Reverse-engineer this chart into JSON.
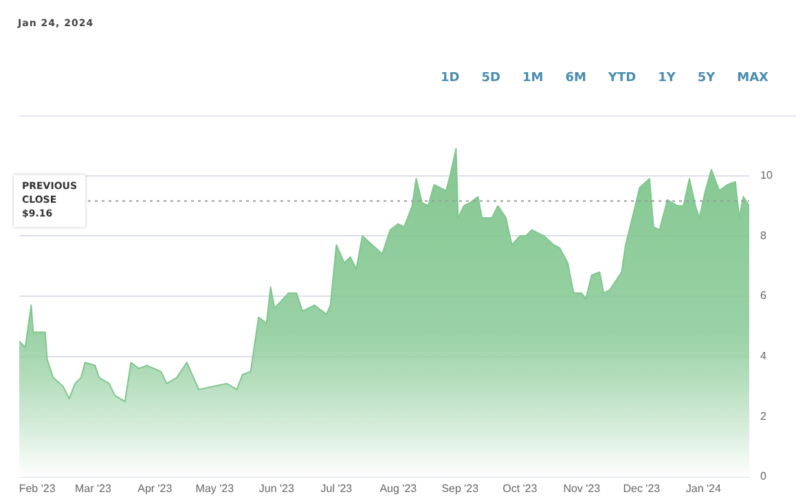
{
  "chart_data": {
    "type": "area",
    "title": "Jan 24, 2024",
    "annotations": [
      "1D",
      "5D",
      "1M",
      "6M",
      "YTD",
      "1Y",
      "5Y",
      "MAX"
    ],
    "x": [
      "2023-01-23",
      "2023-01-26",
      "2023-01-29",
      "2023-01-30",
      "2023-02-05",
      "2023-02-06",
      "2023-02-09",
      "2023-02-14",
      "2023-02-17",
      "2023-02-20",
      "2023-02-23",
      "2023-02-25",
      "2023-03-02",
      "2023-03-04",
      "2023-03-09",
      "2023-03-12",
      "2023-03-17",
      "2023-03-20",
      "2023-03-24",
      "2023-03-28",
      "2023-04-04",
      "2023-04-07",
      "2023-04-12",
      "2023-04-17",
      "2023-04-23",
      "2023-04-30",
      "2023-05-07",
      "2023-05-12",
      "2023-05-15",
      "2023-05-19",
      "2023-05-23",
      "2023-05-27",
      "2023-05-29",
      "2023-05-31",
      "2023-06-07",
      "2023-06-11",
      "2023-06-14",
      "2023-06-20",
      "2023-06-26",
      "2023-06-28",
      "2023-07-01",
      "2023-07-05",
      "2023-07-08",
      "2023-07-11",
      "2023-07-14",
      "2023-07-19",
      "2023-07-24",
      "2023-07-28",
      "2023-08-01",
      "2023-08-04",
      "2023-08-08",
      "2023-08-10",
      "2023-08-13",
      "2023-08-16",
      "2023-08-19",
      "2023-08-22",
      "2023-08-25",
      "2023-08-27",
      "2023-08-30",
      "2023-08-31",
      "2023-09-03",
      "2023-09-06",
      "2023-09-10",
      "2023-09-12",
      "2023-09-17",
      "2023-09-20",
      "2023-09-24",
      "2023-09-27",
      "2023-10-01",
      "2023-10-04",
      "2023-10-07",
      "2023-10-13",
      "2023-10-18",
      "2023-10-21",
      "2023-10-25",
      "2023-10-28",
      "2023-11-01",
      "2023-11-03",
      "2023-11-06",
      "2023-11-10",
      "2023-11-12",
      "2023-11-15",
      "2023-11-18",
      "2023-11-21",
      "2023-11-23",
      "2023-11-26",
      "2023-11-30",
      "2023-12-05",
      "2023-12-07",
      "2023-12-10",
      "2023-12-14",
      "2023-12-19",
      "2023-12-22",
      "2023-12-25",
      "2023-12-28",
      "2023-12-30",
      "2024-01-02",
      "2024-01-05",
      "2024-01-09",
      "2024-01-13",
      "2024-01-17",
      "2024-01-19",
      "2024-01-21",
      "2024-01-24"
    ],
    "series": [
      {
        "color": "#80c68e",
        "values": [
          4.5,
          4.3,
          5.7,
          4.8,
          4.8,
          3.9,
          3.3,
          3.0,
          2.6,
          3.1,
          3.3,
          3.8,
          3.7,
          3.3,
          3.1,
          2.7,
          2.5,
          3.8,
          3.6,
          3.7,
          3.5,
          3.1,
          3.3,
          3.8,
          2.9,
          3.0,
          3.1,
          2.9,
          3.4,
          3.5,
          5.3,
          5.1,
          6.3,
          5.6,
          6.1,
          6.1,
          5.5,
          5.7,
          5.4,
          5.7,
          7.7,
          7.1,
          7.3,
          6.9,
          8.0,
          7.7,
          7.4,
          8.2,
          8.4,
          8.3,
          9.0,
          9.9,
          9.1,
          9.0,
          9.7,
          9.6,
          9.5,
          10.0,
          10.9,
          8.6,
          9.0,
          9.1,
          9.3,
          8.6,
          8.6,
          9.0,
          8.6,
          7.7,
          8.0,
          8.0,
          8.2,
          8.0,
          7.7,
          7.6,
          7.1,
          6.1,
          6.1,
          5.9,
          6.7,
          6.8,
          6.1,
          6.2,
          6.5,
          6.8,
          7.7,
          8.5,
          9.6,
          9.9,
          8.3,
          8.2,
          9.2,
          9.0,
          9.0,
          9.9,
          9.0,
          8.6,
          9.5,
          10.2,
          9.5,
          9.7,
          9.8,
          8.6,
          9.3,
          9.0
        ]
      }
    ],
    "xlim": [
      "2023-01-23",
      "2024-01-24"
    ],
    "xticks": [
      {
        "value": "2023-02-01",
        "label": "Feb '23"
      },
      {
        "value": "2023-03-01",
        "label": "Mar '23"
      },
      {
        "value": "2023-04-01",
        "label": "Apr '23"
      },
      {
        "value": "2023-05-01",
        "label": "May '23"
      },
      {
        "value": "2023-06-01",
        "label": "Jun '23"
      },
      {
        "value": "2023-07-01",
        "label": "Jul '23"
      },
      {
        "value": "2023-08-01",
        "label": "Aug '23"
      },
      {
        "value": "2023-09-01",
        "label": "Sep '23"
      },
      {
        "value": "2023-10-01",
        "label": "Oct '23"
      },
      {
        "value": "2023-11-01",
        "label": "Nov '23"
      },
      {
        "value": "2023-12-01",
        "label": "Dec '23"
      },
      {
        "value": "2024-01-01",
        "label": "Jan '24"
      }
    ],
    "ylim": [
      0,
      12
    ],
    "yticks": [
      0,
      2,
      4,
      6,
      8,
      10
    ],
    "grid": "y",
    "legend": false,
    "ref_lines": [
      {
        "axis": "y",
        "value": 9.16,
        "label": "PREVIOUS CLOSE $9.16",
        "color": "#999999",
        "line_style": "dotted"
      }
    ]
  }
}
